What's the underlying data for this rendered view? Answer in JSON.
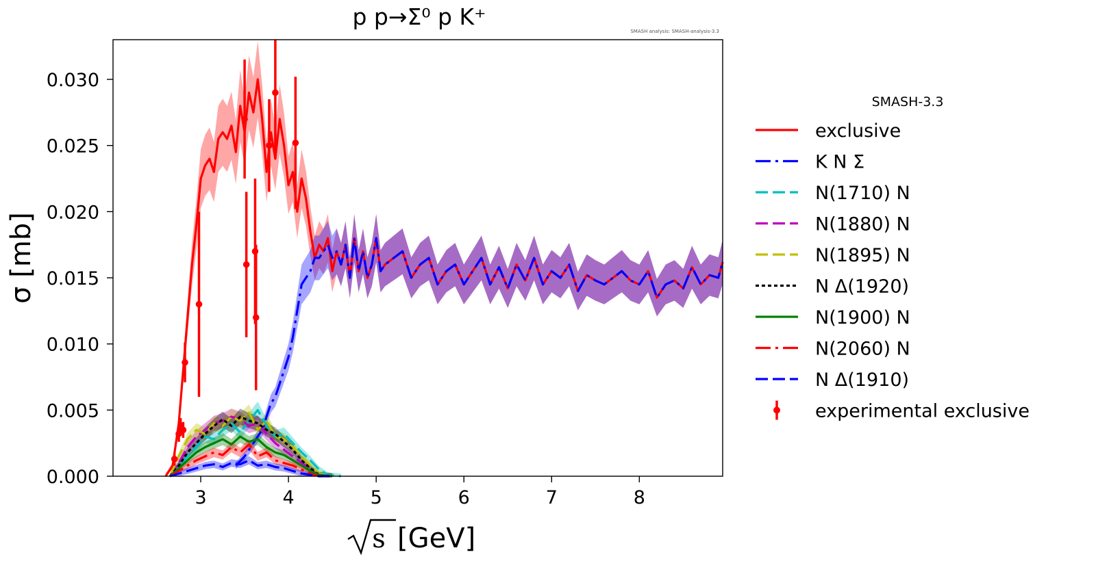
{
  "chart_data": {
    "type": "line",
    "title": "p p→Σ⁰ p K⁺",
    "annotation": "SMASH analysis: SMASH-analysis-3.3",
    "xlabel_sym": "s",
    "xlabel_unit": "[GeV]",
    "ylabel": "σ [mb]",
    "xlim": [
      2.0,
      8.95
    ],
    "ylim": [
      0.0,
      0.033
    ],
    "xticks": [
      3,
      4,
      5,
      6,
      7,
      8
    ],
    "yticks": [
      0.0,
      0.005,
      0.01,
      0.015,
      0.02,
      0.025,
      0.03
    ],
    "ytick_labels": [
      "0.000",
      "0.005",
      "0.010",
      "0.015",
      "0.020",
      "0.025",
      "0.030"
    ],
    "legend_title": "SMASH-3.3",
    "legend_position": "outside-right",
    "series": [
      {
        "name": "exclusive",
        "color": "#ff0000",
        "style": "solid",
        "band": true,
        "x": [
          2.6,
          2.68,
          2.75,
          2.8,
          2.85,
          2.9,
          2.95,
          3.0,
          3.05,
          3.1,
          3.15,
          3.2,
          3.25,
          3.3,
          3.35,
          3.4,
          3.45,
          3.5,
          3.55,
          3.6,
          3.65,
          3.7,
          3.75,
          3.8,
          3.85,
          3.9,
          3.95,
          4.0,
          4.05,
          4.1,
          4.15,
          4.2,
          4.25,
          4.3,
          4.35,
          4.4,
          4.45,
          4.5,
          4.55,
          4.6,
          4.65,
          4.7,
          4.75,
          4.8,
          4.85,
          4.9,
          4.95,
          5.0,
          5.05,
          5.1,
          5.2,
          5.3,
          5.4,
          5.5,
          5.6,
          5.7,
          5.8,
          5.9,
          6.0,
          6.1,
          6.2,
          6.3,
          6.4,
          6.5,
          6.6,
          6.7,
          6.8,
          6.9,
          7.0,
          7.1,
          7.2,
          7.3,
          7.4,
          7.5,
          7.6,
          7.7,
          7.8,
          7.9,
          8.0,
          8.1,
          8.2,
          8.3,
          8.4,
          8.5,
          8.6,
          8.7,
          8.8,
          8.9,
          8.95
        ],
        "y": [
          0.0,
          0.0008,
          0.004,
          0.008,
          0.012,
          0.016,
          0.019,
          0.0225,
          0.0235,
          0.024,
          0.023,
          0.0255,
          0.026,
          0.0255,
          0.0265,
          0.0245,
          0.028,
          0.026,
          0.029,
          0.0275,
          0.03,
          0.027,
          0.023,
          0.026,
          0.024,
          0.027,
          0.025,
          0.022,
          0.023,
          0.02,
          0.0225,
          0.021,
          0.0185,
          0.0165,
          0.0175,
          0.017,
          0.018,
          0.0155,
          0.017,
          0.016,
          0.0175,
          0.015,
          0.018,
          0.0155,
          0.017,
          0.015,
          0.016,
          0.018,
          0.0155,
          0.016,
          0.0165,
          0.017,
          0.015,
          0.016,
          0.0165,
          0.0145,
          0.0155,
          0.016,
          0.0145,
          0.0155,
          0.0165,
          0.0145,
          0.0158,
          0.0142,
          0.016,
          0.0148,
          0.0165,
          0.0145,
          0.0155,
          0.015,
          0.016,
          0.014,
          0.0152,
          0.0148,
          0.0145,
          0.015,
          0.0155,
          0.0148,
          0.0145,
          0.0155,
          0.0135,
          0.0145,
          0.0148,
          0.0142,
          0.0158,
          0.0145,
          0.0152,
          0.015,
          0.0162
        ]
      },
      {
        "name": "K N Σ",
        "color": "#0000ff",
        "style": "dashdot",
        "band": true,
        "x": [
          3.4,
          3.5,
          3.6,
          3.65,
          3.7,
          3.75,
          3.8,
          3.85,
          3.9,
          3.95,
          4.0,
          4.05,
          4.1,
          4.15,
          4.2,
          4.25,
          4.3,
          4.35,
          4.4,
          4.45,
          4.5,
          4.55,
          4.6,
          4.65,
          4.7,
          4.75,
          4.8,
          4.85,
          4.9,
          4.95,
          5.0,
          5.05,
          5.1,
          5.2,
          5.3,
          5.4,
          5.5,
          5.6,
          5.7,
          5.8,
          5.9,
          6.0,
          6.1,
          6.2,
          6.3,
          6.4,
          6.5,
          6.6,
          6.7,
          6.8,
          6.9,
          7.0,
          7.1,
          7.2,
          7.3,
          7.4,
          7.5,
          7.6,
          7.7,
          7.8,
          7.9,
          8.0,
          8.1,
          8.2,
          8.3,
          8.4,
          8.5,
          8.6,
          8.7,
          8.8,
          8.9,
          8.95
        ],
        "y": [
          0.0008,
          0.0015,
          0.0025,
          0.003,
          0.0035,
          0.0045,
          0.0055,
          0.006,
          0.007,
          0.008,
          0.009,
          0.0105,
          0.0125,
          0.0145,
          0.015,
          0.0155,
          0.0165,
          0.0165,
          0.017,
          0.0175,
          0.0165,
          0.017,
          0.016,
          0.0175,
          0.015,
          0.018,
          0.0155,
          0.017,
          0.015,
          0.016,
          0.018,
          0.0155,
          0.016,
          0.0165,
          0.017,
          0.015,
          0.016,
          0.0165,
          0.0145,
          0.0155,
          0.016,
          0.0145,
          0.0155,
          0.0165,
          0.0145,
          0.0158,
          0.0142,
          0.016,
          0.0148,
          0.0165,
          0.0145,
          0.0155,
          0.015,
          0.016,
          0.014,
          0.0152,
          0.0148,
          0.0145,
          0.015,
          0.0155,
          0.0148,
          0.0145,
          0.0155,
          0.0135,
          0.0145,
          0.0148,
          0.0142,
          0.0158,
          0.0145,
          0.0152,
          0.015,
          0.0162
        ]
      },
      {
        "name": "N(1710) N",
        "color": "#00bfbf",
        "style": "dashed",
        "band": true,
        "x": [
          2.65,
          2.75,
          2.85,
          2.95,
          3.05,
          3.15,
          3.25,
          3.35,
          3.45,
          3.55,
          3.65,
          3.75,
          3.85,
          3.95,
          4.05,
          4.15,
          4.25,
          4.35,
          4.45,
          4.6
        ],
        "y": [
          0.0,
          0.0008,
          0.0015,
          0.0022,
          0.003,
          0.0028,
          0.0035,
          0.004,
          0.0033,
          0.0042,
          0.005,
          0.0038,
          0.003,
          0.0032,
          0.0025,
          0.0018,
          0.0012,
          0.0005,
          0.0001,
          0.0
        ]
      },
      {
        "name": "N(1880) N",
        "color": "#bf00bf",
        "style": "dashed",
        "band": true,
        "x": [
          2.65,
          2.75,
          2.85,
          2.95,
          3.05,
          3.15,
          3.25,
          3.35,
          3.45,
          3.55,
          3.65,
          3.75,
          3.85,
          3.95,
          4.05,
          4.15,
          4.25,
          4.35,
          4.5
        ],
        "y": [
          0.0,
          0.001,
          0.0022,
          0.003,
          0.0035,
          0.004,
          0.0042,
          0.0045,
          0.0043,
          0.0038,
          0.004,
          0.0032,
          0.0025,
          0.002,
          0.0015,
          0.001,
          0.0005,
          0.0001,
          0.0
        ]
      },
      {
        "name": "N(1895) N",
        "color": "#bfbf00",
        "style": "dashed",
        "band": true,
        "x": [
          2.65,
          2.75,
          2.85,
          2.95,
          3.05,
          3.15,
          3.25,
          3.35,
          3.45,
          3.55,
          3.65,
          3.75,
          3.85,
          3.95,
          4.05,
          4.15,
          4.25,
          4.35,
          4.5
        ],
        "y": [
          0.0,
          0.0015,
          0.0028,
          0.0035,
          0.0032,
          0.004,
          0.0038,
          0.0045,
          0.0042,
          0.0048,
          0.0035,
          0.0042,
          0.003,
          0.0028,
          0.0022,
          0.0015,
          0.0008,
          0.0002,
          0.0
        ]
      },
      {
        "name": "N Δ(1920)",
        "color": "#000000",
        "style": "dotted",
        "band": true,
        "x": [
          2.65,
          2.75,
          2.85,
          2.95,
          3.05,
          3.15,
          3.25,
          3.35,
          3.45,
          3.55,
          3.65,
          3.75,
          3.85,
          3.95,
          4.05,
          4.15,
          4.25,
          4.35,
          4.5
        ],
        "y": [
          0.0,
          0.0008,
          0.0018,
          0.0025,
          0.0032,
          0.0038,
          0.0043,
          0.0038,
          0.0045,
          0.0042,
          0.004,
          0.0035,
          0.0032,
          0.0026,
          0.002,
          0.0012,
          0.0006,
          0.0001,
          0.0
        ]
      },
      {
        "name": "N(1900) N",
        "color": "#008000",
        "style": "solid",
        "band": true,
        "x": [
          2.65,
          2.75,
          2.85,
          2.95,
          3.05,
          3.15,
          3.25,
          3.35,
          3.45,
          3.55,
          3.65,
          3.75,
          3.85,
          3.95,
          4.05,
          4.15,
          4.25,
          4.35,
          4.5
        ],
        "y": [
          0.0,
          0.0006,
          0.0012,
          0.0018,
          0.0022,
          0.0025,
          0.0028,
          0.0024,
          0.003,
          0.0026,
          0.0028,
          0.0022,
          0.0018,
          0.0016,
          0.0012,
          0.0008,
          0.0004,
          0.0001,
          0.0
        ]
      },
      {
        "name": "N(2060) N",
        "color": "#ff0000",
        "style": "dashdot",
        "band": true,
        "x": [
          2.65,
          2.75,
          2.85,
          2.95,
          3.05,
          3.15,
          3.25,
          3.35,
          3.45,
          3.55,
          3.65,
          3.75,
          3.85,
          3.95,
          4.05,
          4.15,
          4.25,
          4.35,
          4.5
        ],
        "y": [
          0.0,
          0.0004,
          0.0008,
          0.0012,
          0.0015,
          0.0018,
          0.0016,
          0.0022,
          0.0018,
          0.0024,
          0.0015,
          0.0018,
          0.0012,
          0.001,
          0.0008,
          0.0005,
          0.0002,
          0.0,
          0.0
        ]
      },
      {
        "name": "N Δ(1910)",
        "color": "#0000ff",
        "style": "dashed",
        "band": true,
        "x": [
          2.65,
          2.75,
          2.85,
          2.95,
          3.05,
          3.15,
          3.25,
          3.35,
          3.45,
          3.55,
          3.65,
          3.75,
          3.85,
          3.95,
          4.05,
          4.15,
          4.25,
          4.35,
          4.5
        ],
        "y": [
          0.0,
          0.0002,
          0.0004,
          0.0006,
          0.0008,
          0.0009,
          0.0007,
          0.001,
          0.0009,
          0.0012,
          0.0008,
          0.0009,
          0.0007,
          0.0006,
          0.0004,
          0.0002,
          0.0001,
          0.0,
          0.0
        ]
      },
      {
        "name": "experimental exclusive",
        "color": "#ff0000",
        "style": "errorbar",
        "band": false,
        "x": [
          2.7,
          2.75,
          2.77,
          2.8,
          2.82,
          2.98,
          3.5,
          3.52,
          3.62,
          3.63,
          3.78,
          3.85,
          4.08
        ],
        "y": [
          0.0013,
          0.0032,
          0.0038,
          0.0035,
          0.0086,
          0.013,
          0.027,
          0.016,
          0.017,
          0.012,
          0.025,
          0.029,
          0.0252
        ],
        "yerr": [
          0.0005,
          0.0006,
          0.0006,
          0.0006,
          0.0015,
          0.007,
          0.0045,
          0.0055,
          0.0055,
          0.0055,
          0.0035,
          0.005,
          0.005
        ]
      }
    ]
  }
}
